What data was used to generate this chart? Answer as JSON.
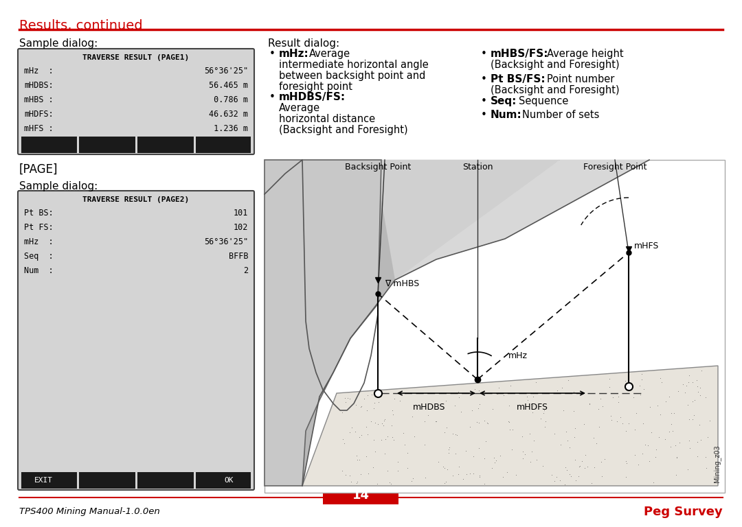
{
  "title": "Results, continued",
  "title_color": "#CC0000",
  "header_line_color": "#CC0000",
  "bg_color": "#ffffff",
  "footer_left": "TPS400 Mining Manual-1.0.0en",
  "footer_center": "14",
  "footer_right": "Peg Survey",
  "footer_right_color": "#CC0000",
  "footer_center_color": "#ffffff",
  "footer_center_bg": "#CC0000",
  "sample_dialog_label": "Sample dialog:",
  "result_dialog_label": "Result dialog:",
  "page_label": "[PAGE]",
  "sample_dialog_label2": "Sample dialog:",
  "dialog1_title": "TRAVERSE RESULT (PAGE1)",
  "dialog1_rows": [
    [
      "mHz  :",
      "56°36'25\""
    ],
    [
      "mHDBS:",
      "56.465 m"
    ],
    [
      "mHBS :",
      " 0.786 m"
    ],
    [
      "mHDFS:",
      "46.632 m"
    ],
    [
      "mHFS :",
      " 1.236 m"
    ]
  ],
  "dialog2_title": "TRAVERSE RESULT (PAGE2)",
  "dialog2_rows": [
    [
      "Pt BS:",
      "101"
    ],
    [
      "Pt FS:",
      "102"
    ],
    [
      "mHz  :",
      "56°36'25\""
    ],
    [
      "Seq  :",
      "BFFB"
    ],
    [
      "Num  :",
      "2"
    ]
  ],
  "dialog2_footer_left": "EXIT",
  "dialog2_footer_right": "OK",
  "diagram_labels": {
    "backsight": "Backsight Point",
    "station": "Station",
    "foresight": "Foresight Point",
    "mHFS": "mHFS",
    "mHBS": "mHBS",
    "mHz": "mHz",
    "mHDBS": "mHDBS",
    "mHDFS": "mHDFS"
  }
}
